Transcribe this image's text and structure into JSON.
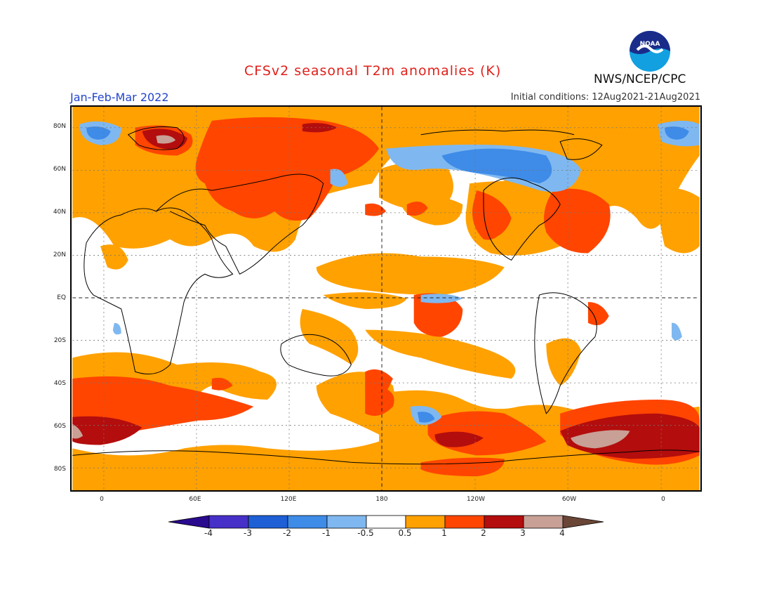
{
  "header": {
    "title": "CFSv2 seasonal T2m anomalies (K)",
    "season": "Jan-Feb-Mar 2022",
    "initial_conditions": "Initial conditions: 12Aug2021-21Aug2021",
    "agency": "NWS/NCEP/CPC",
    "logo_text": "NOAA"
  },
  "map": {
    "lat_labels": [
      "80N",
      "60N",
      "40N",
      "20N",
      "EQ",
      "20S",
      "40S",
      "60S",
      "80S"
    ],
    "lon_labels": [
      "0",
      "60E",
      "120E",
      "180",
      "120W",
      "60W",
      "0"
    ]
  },
  "legend": {
    "labels": [
      "-4",
      "-3",
      "-2",
      "-1",
      "-0.5",
      "0.5",
      "1",
      "2",
      "3",
      "4"
    ],
    "colors": [
      "#2a0a8f",
      "#4630c8",
      "#1e5fd6",
      "#3e8be8",
      "#7fb8f0",
      "#ffffff",
      "#ffa100",
      "#ff4500",
      "#b30d0d",
      "#c8a095",
      "#6a4636"
    ]
  }
}
